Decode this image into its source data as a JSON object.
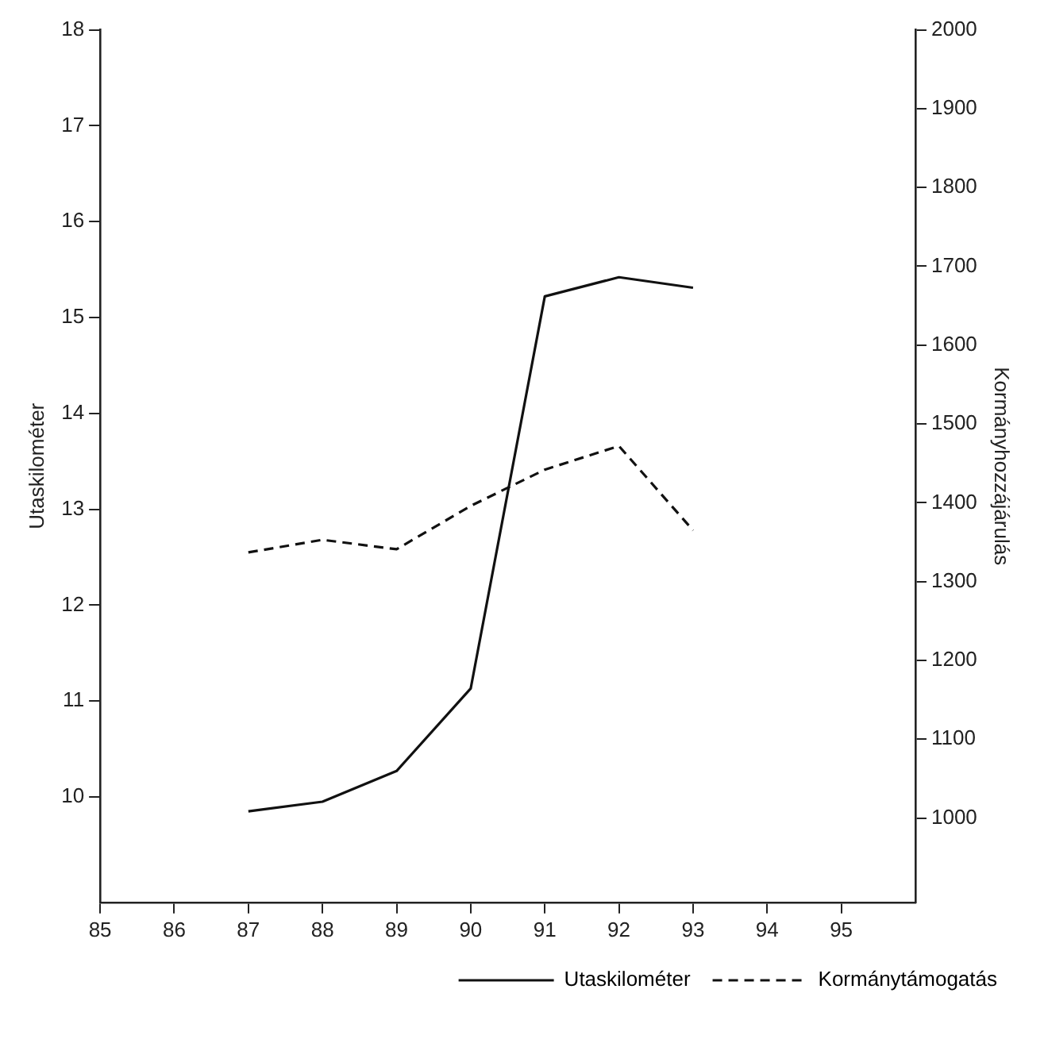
{
  "chart_data": {
    "type": "line",
    "ylabel": "Utaskilométer",
    "y2label": "Kormányhozzájárulás",
    "x": [
      87,
      88,
      89,
      90,
      91,
      92,
      93
    ],
    "xlim": [
      85,
      96
    ],
    "xticks": [
      85,
      86,
      87,
      88,
      89,
      90,
      91,
      92,
      93,
      94,
      95
    ],
    "ylim": [
      8.9,
      18
    ],
    "yticks": [
      10,
      11,
      12,
      13,
      14,
      15,
      16,
      17,
      18
    ],
    "y2lim": [
      893,
      2000
    ],
    "y2ticks": [
      1000,
      1100,
      1200,
      1300,
      1400,
      1500,
      1600,
      1700,
      1800,
      1900,
      2000
    ],
    "series": [
      {
        "name": "Utaskilométer",
        "color": "#111111",
        "line_style": "solid",
        "values": [
          9.85,
          9.95,
          10.27,
          11.13,
          15.22,
          15.42,
          15.31
        ]
      },
      {
        "name": "Kormánytámogatás",
        "color": "#111111",
        "line_style": "dashed",
        "axis": "y2",
        "values": [
          1337,
          1353,
          1341,
          1396,
          1442,
          1472,
          1365
        ]
      }
    ],
    "marker": "none",
    "grid": false,
    "legend": "bottom right"
  }
}
